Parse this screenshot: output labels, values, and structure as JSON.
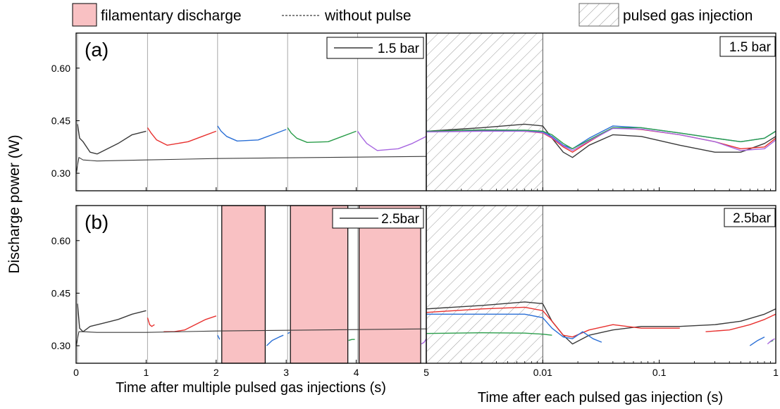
{
  "legend": {
    "filament": "filamentary discharge",
    "nopulse": "without pulse",
    "gas": "pulsed gas injection"
  },
  "ylabel": "Discharge power (W)",
  "xlabel_left": "Time after multiple pulsed gas injections (s)",
  "xlabel_right": "Time after each pulsed gas injection (s)",
  "colors": {
    "black": "#3a3a3a",
    "red": "#e8312f",
    "blue": "#2a6fd6",
    "green": "#2a9d4a",
    "purple": "#a766e0",
    "filament_fill": "#f9c1c3",
    "hatch": "#9a9a9a",
    "vline": "#a8a8a8"
  },
  "chart_data": [
    {
      "panel": "a-left",
      "type": "line",
      "label": "(a)",
      "box_label": "1.5 bar",
      "xlim": [
        0,
        5
      ],
      "ylim": [
        0.25,
        0.7
      ],
      "xticks": [
        "0",
        "1",
        "2",
        "3",
        "4",
        "5"
      ],
      "yticks": [
        "0.30",
        "0.45",
        "0.60"
      ],
      "series": [
        {
          "color": "black",
          "style": "solid",
          "x": [
            0.02,
            0.05,
            0.1,
            0.2,
            0.3,
            0.45,
            0.6,
            0.8,
            1.0
          ],
          "y": [
            0.44,
            0.4,
            0.39,
            0.36,
            0.355,
            0.37,
            0.385,
            0.41,
            0.42
          ]
        },
        {
          "color": "red",
          "style": "solid",
          "x": [
            1.02,
            1.07,
            1.15,
            1.3,
            1.6,
            1.8,
            2.0
          ],
          "y": [
            0.43,
            0.415,
            0.395,
            0.38,
            0.39,
            0.405,
            0.42
          ]
        },
        {
          "color": "blue",
          "style": "solid",
          "x": [
            2.02,
            2.07,
            2.15,
            2.3,
            2.6,
            2.8,
            3.0
          ],
          "y": [
            0.435,
            0.42,
            0.405,
            0.392,
            0.395,
            0.41,
            0.425
          ]
        },
        {
          "color": "green",
          "style": "solid",
          "x": [
            3.02,
            3.07,
            3.15,
            3.3,
            3.6,
            3.8,
            4.0
          ],
          "y": [
            0.43,
            0.415,
            0.4,
            0.388,
            0.39,
            0.405,
            0.42
          ]
        },
        {
          "color": "purple",
          "style": "solid",
          "x": [
            4.02,
            4.07,
            4.15,
            4.3,
            4.6,
            4.8,
            5.0
          ],
          "y": [
            0.42,
            0.405,
            0.385,
            0.365,
            0.37,
            0.385,
            0.405
          ]
        },
        {
          "color": "black",
          "style": "dashed",
          "x": [
            0.0,
            0.04,
            0.1,
            0.3,
            1.0,
            2.0,
            3.0,
            4.0,
            5.0
          ],
          "y": [
            0.3,
            0.345,
            0.338,
            0.335,
            0.338,
            0.342,
            0.344,
            0.346,
            0.348
          ]
        }
      ]
    },
    {
      "panel": "a-right",
      "type": "line",
      "box_label": "1.5 bar",
      "xscale": "log",
      "xlim": [
        0.001,
        1
      ],
      "ylim": [
        0.25,
        0.7
      ],
      "xticks": [
        "0.01",
        "0.1",
        "1"
      ],
      "gas_injection_until": 0.01,
      "series": [
        {
          "color": "black",
          "x": [
            0.001,
            0.003,
            0.007,
            0.01,
            0.012,
            0.015,
            0.018,
            0.025,
            0.04,
            0.07,
            0.15,
            0.3,
            0.5,
            0.8,
            1.0
          ],
          "y": [
            0.42,
            0.43,
            0.44,
            0.435,
            0.4,
            0.36,
            0.345,
            0.38,
            0.41,
            0.405,
            0.38,
            0.36,
            0.36,
            0.385,
            0.405
          ]
        },
        {
          "color": "red",
          "x": [
            0.001,
            0.003,
            0.007,
            0.01,
            0.012,
            0.015,
            0.018,
            0.025,
            0.04,
            0.07,
            0.15,
            0.3,
            0.5,
            0.8,
            1.0
          ],
          "y": [
            0.42,
            0.422,
            0.42,
            0.415,
            0.4,
            0.375,
            0.36,
            0.39,
            0.43,
            0.425,
            0.41,
            0.39,
            0.37,
            0.375,
            0.4
          ]
        },
        {
          "color": "blue",
          "x": [
            0.001,
            0.003,
            0.007,
            0.01,
            0.012,
            0.015,
            0.018,
            0.025,
            0.04,
            0.07,
            0.15,
            0.3,
            0.5,
            0.8,
            1.0
          ],
          "y": [
            0.42,
            0.423,
            0.422,
            0.418,
            0.405,
            0.38,
            0.37,
            0.4,
            0.435,
            0.43,
            0.415,
            0.4,
            0.39,
            0.4,
            0.42
          ]
        },
        {
          "color": "green",
          "x": [
            0.001,
            0.003,
            0.007,
            0.01,
            0.012,
            0.015,
            0.018,
            0.025,
            0.04,
            0.07,
            0.15,
            0.3,
            0.5,
            0.8,
            1.0
          ],
          "y": [
            0.42,
            0.424,
            0.423,
            0.42,
            0.41,
            0.385,
            0.37,
            0.395,
            0.43,
            0.43,
            0.415,
            0.4,
            0.39,
            0.4,
            0.42
          ]
        },
        {
          "color": "purple",
          "x": [
            0.001,
            0.003,
            0.007,
            0.01,
            0.012,
            0.015,
            0.018,
            0.025,
            0.04,
            0.07,
            0.15,
            0.3,
            0.5,
            0.8,
            1.0
          ],
          "y": [
            0.418,
            0.42,
            0.42,
            0.416,
            0.402,
            0.378,
            0.365,
            0.392,
            0.428,
            0.426,
            0.41,
            0.39,
            0.365,
            0.37,
            0.395
          ]
        }
      ]
    },
    {
      "panel": "b-left",
      "type": "line",
      "label": "(b)",
      "box_label": "2.5bar",
      "xlim": [
        0,
        5
      ],
      "ylim": [
        0.25,
        0.7
      ],
      "xticks": [
        "0",
        "1",
        "2",
        "3",
        "4",
        "5"
      ],
      "yticks": [
        "0.30",
        "0.45",
        "0.60"
      ],
      "filamentary_intervals": [
        [
          2.08,
          2.7
        ],
        [
          3.06,
          3.88
        ],
        [
          4.04,
          4.92
        ]
      ],
      "series": [
        {
          "color": "black",
          "style": "solid",
          "x": [
            0.02,
            0.05,
            0.1,
            0.2,
            0.4,
            0.6,
            0.8,
            1.0
          ],
          "y": [
            0.42,
            0.35,
            0.34,
            0.355,
            0.365,
            0.375,
            0.39,
            0.4
          ]
        },
        {
          "color": "red",
          "style": "solid",
          "x": [
            1.02,
            1.05,
            1.08,
            1.12
          ],
          "y": [
            0.38,
            0.36,
            0.355,
            0.36
          ]
        },
        {
          "color": "red",
          "style": "solid",
          "x": [
            1.25,
            1.4,
            1.55,
            1.7,
            1.85,
            2.0
          ],
          "y": [
            0.34,
            0.34,
            0.345,
            0.36,
            0.375,
            0.385
          ]
        },
        {
          "color": "blue",
          "style": "solid",
          "x": [
            2.02,
            2.05
          ],
          "y": [
            0.33,
            0.318
          ]
        },
        {
          "color": "blue",
          "style": "solid",
          "x": [
            2.72,
            2.8,
            2.9,
            2.96
          ],
          "y": [
            0.3,
            0.315,
            0.325,
            0.33
          ]
        },
        {
          "color": "blue",
          "style": "solid",
          "x": [
            3.02,
            3.05
          ],
          "y": [
            0.335,
            0.338
          ]
        },
        {
          "color": "green",
          "style": "solid",
          "x": [
            3.89,
            3.94,
            3.98
          ],
          "y": [
            0.315,
            0.318,
            0.318
          ]
        },
        {
          "color": "purple",
          "style": "solid",
          "x": [
            4.93,
            4.97,
            5.0
          ],
          "y": [
            0.305,
            0.31,
            0.32
          ]
        },
        {
          "color": "black",
          "style": "dashed",
          "x": [
            0.0,
            0.04,
            0.1,
            0.3,
            1.0,
            2.0,
            3.0,
            4.0,
            5.0
          ],
          "y": [
            0.3,
            0.34,
            0.34,
            0.338,
            0.338,
            0.342,
            0.344,
            0.346,
            0.348
          ]
        }
      ]
    },
    {
      "panel": "b-right",
      "type": "line",
      "box_label": "2.5bar",
      "xscale": "log",
      "xlim": [
        0.001,
        1
      ],
      "ylim": [
        0.25,
        0.7
      ],
      "xticks": [
        "0.01",
        "0.1",
        "1"
      ],
      "gas_injection_until": 0.01,
      "series": [
        {
          "color": "black",
          "x": [
            0.001,
            0.003,
            0.007,
            0.01,
            0.012,
            0.015,
            0.018,
            0.025,
            0.04,
            0.07,
            0.15,
            0.3,
            0.5,
            0.8,
            1.0
          ],
          "y": [
            0.405,
            0.415,
            0.425,
            0.42,
            0.37,
            0.33,
            0.305,
            0.33,
            0.345,
            0.355,
            0.355,
            0.36,
            0.37,
            0.39,
            0.405
          ]
        },
        {
          "color": "red",
          "x": [
            0.001,
            0.003,
            0.007,
            0.01,
            0.012,
            0.015,
            0.018,
            0.025,
            0.04,
            0.07,
            0.15
          ],
          "y": [
            0.395,
            0.405,
            0.41,
            0.4,
            0.37,
            0.33,
            0.325,
            0.345,
            0.36,
            0.35,
            0.35
          ]
        },
        {
          "color": "red",
          "x": [
            0.25,
            0.4,
            0.6,
            0.8,
            1.0
          ],
          "y": [
            0.34,
            0.345,
            0.36,
            0.375,
            0.39
          ]
        },
        {
          "color": "blue",
          "x": [
            0.001,
            0.003,
            0.007,
            0.01,
            0.012,
            0.015,
            0.018,
            0.022,
            0.027,
            0.032
          ],
          "y": [
            0.39,
            0.39,
            0.39,
            0.38,
            0.35,
            0.325,
            0.32,
            0.34,
            0.32,
            0.31
          ]
        },
        {
          "color": "blue",
          "x": [
            0.6,
            0.7,
            0.8
          ],
          "y": [
            0.3,
            0.315,
            0.325
          ]
        },
        {
          "color": "green",
          "x": [
            0.001,
            0.003,
            0.007,
            0.01,
            0.012
          ],
          "y": [
            0.335,
            0.337,
            0.336,
            0.333,
            0.33
          ]
        },
        {
          "color": "green",
          "x": [
            0.88,
            0.95
          ],
          "y": [
            0.31,
            0.315
          ]
        },
        {
          "color": "purple",
          "x": [
            0.85,
            0.92,
            0.98
          ],
          "y": [
            0.305,
            0.315,
            0.32
          ]
        }
      ]
    }
  ]
}
